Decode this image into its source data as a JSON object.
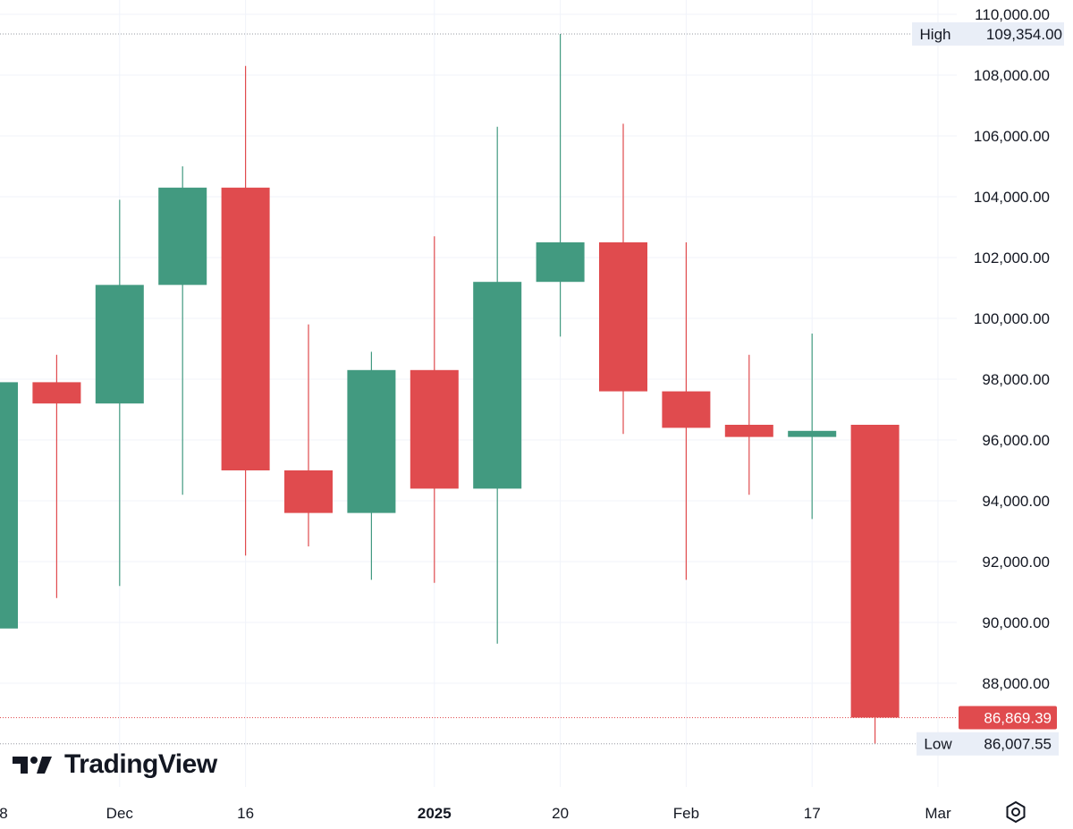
{
  "chart_data": {
    "type": "candlestick",
    "ylim": [
      85000,
      110500
    ],
    "y_ticks": [
      "110,000.00",
      "108,000.00",
      "106,000.00",
      "104,000.00",
      "102,000.00",
      "100,000.00",
      "98,000.00",
      "96,000.00",
      "94,000.00",
      "92,000.00",
      "90,000.00",
      "88,000.00"
    ],
    "y_tick_values": [
      110000,
      108000,
      106000,
      104000,
      102000,
      100000,
      98000,
      96000,
      94000,
      92000,
      90000,
      88000
    ],
    "x_labels": [
      {
        "label": "8",
        "index": 0
      },
      {
        "label": "Dec",
        "index": 2
      },
      {
        "label": "16",
        "index": 4
      },
      {
        "label": "2025",
        "index": 7,
        "bold": true
      },
      {
        "label": "20",
        "index": 9
      },
      {
        "label": "Feb",
        "index": 11
      },
      {
        "label": "17",
        "index": 13
      },
      {
        "label": "Mar",
        "index": 15
      }
    ],
    "candles": [
      {
        "open": 89800,
        "high": 97900,
        "low": 89800,
        "close": 97900
      },
      {
        "open": 97900,
        "high": 98800,
        "low": 90800,
        "close": 97200
      },
      {
        "open": 97200,
        "high": 103900,
        "low": 91200,
        "close": 101100
      },
      {
        "open": 101100,
        "high": 105000,
        "low": 94200,
        "close": 104300
      },
      {
        "open": 104300,
        "high": 108300,
        "low": 92200,
        "close": 95000
      },
      {
        "open": 95000,
        "high": 99800,
        "low": 92500,
        "close": 93600
      },
      {
        "open": 93600,
        "high": 98900,
        "low": 91400,
        "close": 98300
      },
      {
        "open": 98300,
        "high": 102700,
        "low": 91300,
        "close": 94400
      },
      {
        "open": 94400,
        "high": 106300,
        "low": 89300,
        "close": 101200
      },
      {
        "open": 101200,
        "high": 109354,
        "low": 99400,
        "close": 102500
      },
      {
        "open": 102500,
        "high": 106400,
        "low": 96200,
        "close": 97600
      },
      {
        "open": 97600,
        "high": 102500,
        "low": 91400,
        "close": 96400
      },
      {
        "open": 96500,
        "high": 98800,
        "low": 94200,
        "close": 96100
      },
      {
        "open": 96100,
        "high": 99500,
        "low": 93400,
        "close": 96300
      },
      {
        "open": 96500,
        "high": 96500,
        "low": 86007.55,
        "close": 86869.39
      }
    ],
    "high": {
      "label": "High",
      "value": 109354,
      "text": "109,354.00"
    },
    "low": {
      "label": "Low",
      "value": 86007.55,
      "text": "86,007.55"
    },
    "last_price": {
      "value": 86869.39,
      "text": "86,869.39"
    },
    "colors": {
      "up": "#429a80",
      "down": "#e04b4e",
      "grid": "#f0f3fa",
      "axis_text": "#131722",
      "label_bg": "#e9eef7",
      "dotted": "#9598a1"
    }
  },
  "branding": {
    "logo_text": "TradingView"
  },
  "icons": {
    "settings": "settings-icon",
    "logo": "tradingview-logo-icon"
  }
}
